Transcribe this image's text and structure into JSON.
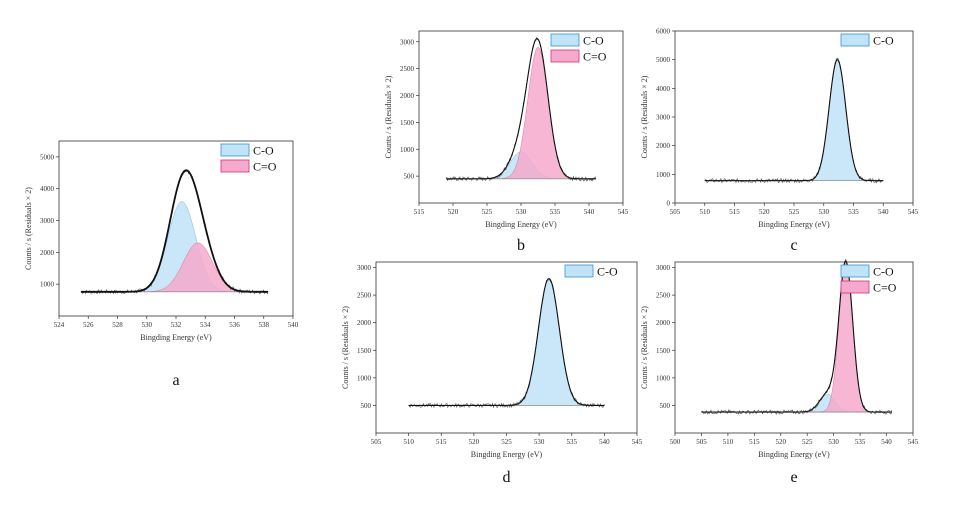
{
  "colors": {
    "co_fill": "#bfe3f7",
    "co_edge": "#3a8fd6",
    "c2o_fill": "#f5a9cc",
    "c2o_edge": "#d6336c",
    "envelope": "#111111",
    "baseline": "#888888"
  },
  "chart_data": [
    {
      "id": "a",
      "type": "line",
      "panel_label": "a",
      "xlabel": "Bingding Energy  (eV)",
      "ylabel": "Counts / s  (Residuals × 2)",
      "xlim": [
        524,
        540
      ],
      "ylim": [
        0,
        5500
      ],
      "xticks": [
        524,
        526,
        528,
        530,
        532,
        534,
        536,
        538,
        540
      ],
      "yticks": [
        1000,
        2000,
        3000,
        4000,
        5000
      ],
      "data_x_range": [
        525.5,
        538.3
      ],
      "baseline": 760,
      "legend": [
        "C-O",
        "C=O"
      ],
      "series": [
        {
          "name": "C-O",
          "center": 532.4,
          "height": 3600,
          "width": 0.95
        },
        {
          "name": "C=O",
          "center": 533.5,
          "height": 2300,
          "width": 1.0
        }
      ]
    },
    {
      "id": "b",
      "type": "line",
      "panel_label": "b",
      "xlabel": "Bingding Energy  (eV)",
      "ylabel": "Counts / s  (Residuals × 2)",
      "xlim": [
        515,
        545
      ],
      "ylim": [
        0,
        3200
      ],
      "xticks": [
        515,
        520,
        525,
        530,
        535,
        540,
        545
      ],
      "yticks": [
        500,
        1000,
        1500,
        2000,
        2500,
        3000
      ],
      "data_x_range": [
        519,
        541
      ],
      "baseline": 450,
      "legend": [
        "C-O",
        "C=O"
      ],
      "series": [
        {
          "name": "C-O",
          "center": 530.0,
          "height": 950,
          "width": 1.6
        },
        {
          "name": "C=O",
          "center": 532.5,
          "height": 2900,
          "width": 1.5
        }
      ]
    },
    {
      "id": "c",
      "type": "line",
      "panel_label": "c",
      "xlabel": "Bingding Energy  (eV)",
      "ylabel": "Counts / s  (Residuals × 2)",
      "xlim": [
        505,
        545
      ],
      "ylim": [
        0,
        6000
      ],
      "xticks": [
        505,
        510,
        515,
        520,
        525,
        530,
        535,
        540,
        545
      ],
      "yticks": [
        0,
        1000,
        2000,
        3000,
        4000,
        5000,
        6000
      ],
      "data_x_range": [
        510,
        540
      ],
      "baseline": 780,
      "legend": [
        "C-O"
      ],
      "series": [
        {
          "name": "C-O",
          "center": 532.3,
          "height": 5000,
          "width": 1.4
        }
      ]
    },
    {
      "id": "d",
      "type": "line",
      "panel_label": "d",
      "xlabel": "Bingding Energy  (eV)",
      "ylabel": "Counts / s  (Residuals × 2)",
      "xlim": [
        505,
        545
      ],
      "ylim": [
        0,
        3100
      ],
      "xticks": [
        505,
        510,
        515,
        520,
        525,
        530,
        535,
        540,
        545
      ],
      "yticks": [
        500,
        1000,
        1500,
        2000,
        2500,
        3000
      ],
      "data_x_range": [
        510,
        540
      ],
      "baseline": 500,
      "legend": [
        "C-O"
      ],
      "series": [
        {
          "name": "C-O",
          "center": 531.5,
          "height": 2800,
          "width": 1.6
        }
      ]
    },
    {
      "id": "e",
      "type": "line",
      "panel_label": "e",
      "xlabel": "Bingding Energy  (eV)",
      "ylabel": "Counts / s  (Residuals × 2)",
      "xlim": [
        500,
        545
      ],
      "ylim": [
        0,
        3100
      ],
      "xticks": [
        500,
        505,
        510,
        515,
        520,
        525,
        530,
        535,
        540,
        545
      ],
      "yticks": [
        500,
        1000,
        1500,
        2000,
        2500,
        3000
      ],
      "data_x_range": [
        505,
        541
      ],
      "baseline": 380,
      "legend": [
        "C-O",
        "C=O"
      ],
      "series": [
        {
          "name": "C-O",
          "center": 528.8,
          "height": 700,
          "width": 1.5
        },
        {
          "name": "C=O",
          "center": 532.3,
          "height": 3100,
          "width": 1.3
        }
      ]
    }
  ]
}
